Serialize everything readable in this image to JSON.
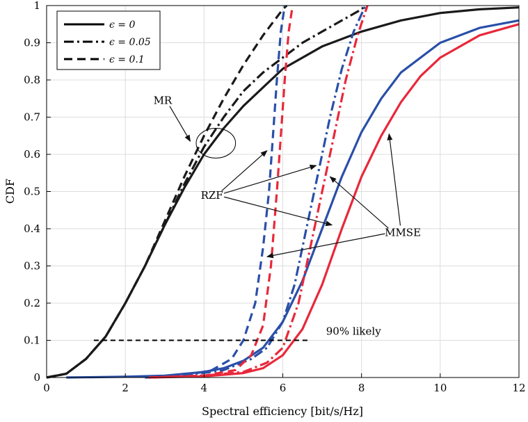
{
  "chart_data": {
    "type": "line",
    "title": "",
    "xlabel": "Spectral efficiency [bit/s/Hz]",
    "ylabel": "CDF",
    "xlim": [
      0,
      12
    ],
    "ylim": [
      0,
      1
    ],
    "xticks": [
      0,
      2,
      4,
      6,
      8,
      10,
      12
    ],
    "yticks": [
      0,
      0.1,
      0.2,
      0.3,
      0.4,
      0.5,
      0.6,
      0.7,
      0.8,
      0.9,
      1
    ],
    "grid": true,
    "legend_position": "top-left",
    "legend": [
      {
        "label": "ϵ = 0",
        "style": "solid"
      },
      {
        "label": "ϵ = 0.05",
        "style": "dashdot"
      },
      {
        "label": "ϵ = 0.1",
        "style": "dashed"
      }
    ],
    "colors": {
      "MR": "#1a1a1a",
      "RZF": "#2a4fa8",
      "MMSE": "#e8283a",
      "grid": "#dcdcdc"
    },
    "series": [
      {
        "name": "MR ϵ=0",
        "scheme": "MR",
        "eps": "0",
        "style": "solid",
        "points": [
          [
            0,
            0
          ],
          [
            0.5,
            0.01
          ],
          [
            1,
            0.05
          ],
          [
            1.5,
            0.11
          ],
          [
            2,
            0.2
          ],
          [
            2.5,
            0.3
          ],
          [
            3,
            0.41
          ],
          [
            3.5,
            0.51
          ],
          [
            4,
            0.6
          ],
          [
            4.5,
            0.67
          ],
          [
            5,
            0.73
          ],
          [
            5.5,
            0.78
          ],
          [
            6,
            0.83
          ],
          [
            7,
            0.89
          ],
          [
            8,
            0.93
          ],
          [
            9,
            0.96
          ],
          [
            10,
            0.98
          ],
          [
            11,
            0.99
          ],
          [
            12,
            0.995
          ]
        ]
      },
      {
        "name": "MR ϵ=0.05",
        "scheme": "MR",
        "eps": "0.05",
        "style": "dashdot",
        "points": [
          [
            0,
            0
          ],
          [
            0.5,
            0.01
          ],
          [
            1,
            0.05
          ],
          [
            1.5,
            0.11
          ],
          [
            2,
            0.2
          ],
          [
            2.5,
            0.3
          ],
          [
            3,
            0.41
          ],
          [
            3.5,
            0.52
          ],
          [
            4,
            0.62
          ],
          [
            4.5,
            0.7
          ],
          [
            5,
            0.77
          ],
          [
            5.5,
            0.82
          ],
          [
            6,
            0.86
          ],
          [
            6.5,
            0.9
          ],
          [
            7,
            0.93
          ],
          [
            7.5,
            0.96
          ],
          [
            8,
            0.99
          ],
          [
            8.1,
            1
          ]
        ]
      },
      {
        "name": "MR ϵ=0.1",
        "scheme": "MR",
        "eps": "0.1",
        "style": "dashed",
        "points": [
          [
            0,
            0
          ],
          [
            0.5,
            0.01
          ],
          [
            1,
            0.05
          ],
          [
            1.5,
            0.11
          ],
          [
            2,
            0.2
          ],
          [
            2.5,
            0.3
          ],
          [
            3,
            0.42
          ],
          [
            3.5,
            0.54
          ],
          [
            4,
            0.65
          ],
          [
            4.5,
            0.75
          ],
          [
            5,
            0.84
          ],
          [
            5.5,
            0.92
          ],
          [
            6,
            0.99
          ],
          [
            6.1,
            1
          ]
        ]
      },
      {
        "name": "RZF ϵ=0",
        "scheme": "RZF",
        "eps": "0",
        "style": "solid",
        "points": [
          [
            0.5,
            0
          ],
          [
            2,
            0.002
          ],
          [
            3,
            0.005
          ],
          [
            4,
            0.015
          ],
          [
            4.5,
            0.025
          ],
          [
            5,
            0.045
          ],
          [
            5.5,
            0.08
          ],
          [
            6,
            0.15
          ],
          [
            6.5,
            0.26
          ],
          [
            7,
            0.4
          ],
          [
            7.5,
            0.54
          ],
          [
            8,
            0.66
          ],
          [
            8.5,
            0.75
          ],
          [
            9,
            0.82
          ],
          [
            10,
            0.9
          ],
          [
            11,
            0.94
          ],
          [
            12,
            0.96
          ]
        ]
      },
      {
        "name": "RZF ϵ=0.05",
        "scheme": "RZF",
        "eps": "0.05",
        "style": "dashdot",
        "points": [
          [
            2.5,
            0
          ],
          [
            3.5,
            0.005
          ],
          [
            4.5,
            0.02
          ],
          [
            5.2,
            0.05
          ],
          [
            5.6,
            0.08
          ],
          [
            6,
            0.15
          ],
          [
            6.3,
            0.25
          ],
          [
            6.6,
            0.4
          ],
          [
            6.9,
            0.55
          ],
          [
            7.2,
            0.7
          ],
          [
            7.5,
            0.83
          ],
          [
            7.8,
            0.93
          ],
          [
            8.1,
            1
          ]
        ]
      },
      {
        "name": "RZF ϵ=0.1",
        "scheme": "RZF",
        "eps": "0.1",
        "style": "dashed",
        "points": [
          [
            2.5,
            0
          ],
          [
            3.5,
            0.005
          ],
          [
            4.2,
            0.02
          ],
          [
            4.7,
            0.05
          ],
          [
            5,
            0.1
          ],
          [
            5.3,
            0.2
          ],
          [
            5.5,
            0.35
          ],
          [
            5.65,
            0.5
          ],
          [
            5.75,
            0.65
          ],
          [
            5.85,
            0.8
          ],
          [
            5.95,
            0.93
          ],
          [
            6.05,
            1
          ]
        ]
      },
      {
        "name": "MMSE ϵ=0",
        "scheme": "MMSE",
        "eps": "0",
        "style": "solid",
        "points": [
          [
            2.6,
            0
          ],
          [
            4,
            0.003
          ],
          [
            5,
            0.012
          ],
          [
            5.5,
            0.025
          ],
          [
            6,
            0.06
          ],
          [
            6.5,
            0.13
          ],
          [
            7,
            0.25
          ],
          [
            7.5,
            0.4
          ],
          [
            8,
            0.54
          ],
          [
            8.5,
            0.65
          ],
          [
            9,
            0.74
          ],
          [
            9.5,
            0.81
          ],
          [
            10,
            0.86
          ],
          [
            11,
            0.92
          ],
          [
            12,
            0.95
          ]
        ]
      },
      {
        "name": "MMSE ϵ=0.05",
        "scheme": "MMSE",
        "eps": "0.05",
        "style": "dashdot",
        "points": [
          [
            2.6,
            0
          ],
          [
            4,
            0.005
          ],
          [
            5,
            0.015
          ],
          [
            5.6,
            0.04
          ],
          [
            6,
            0.08
          ],
          [
            6.4,
            0.2
          ],
          [
            6.7,
            0.35
          ],
          [
            7,
            0.5
          ],
          [
            7.3,
            0.65
          ],
          [
            7.6,
            0.8
          ],
          [
            7.9,
            0.92
          ],
          [
            8.15,
            1
          ]
        ]
      },
      {
        "name": "MMSE ϵ=0.1",
        "scheme": "MMSE",
        "eps": "0.1",
        "style": "dashed",
        "points": [
          [
            2.6,
            0
          ],
          [
            4,
            0.005
          ],
          [
            4.8,
            0.02
          ],
          [
            5.2,
            0.06
          ],
          [
            5.5,
            0.14
          ],
          [
            5.7,
            0.3
          ],
          [
            5.85,
            0.5
          ],
          [
            5.95,
            0.65
          ],
          [
            6.05,
            0.8
          ],
          [
            6.15,
            0.93
          ],
          [
            6.25,
            1
          ]
        ]
      }
    ],
    "threshold_line": {
      "y": 0.1,
      "x": [
        1.2,
        6.7
      ],
      "label": "90% likely",
      "label_x": 7.1,
      "label_y": 0.115
    },
    "annotations": [
      {
        "text": "MR",
        "x": 2.95,
        "y": 0.745,
        "arrows": [
          [
            3.65,
            0.635
          ]
        ]
      },
      {
        "text": "RZF",
        "x": 4.2,
        "y": 0.49,
        "arrows": [
          [
            5.6,
            0.61
          ],
          [
            6.85,
            0.57
          ],
          [
            7.25,
            0.41
          ]
        ]
      },
      {
        "text": "MMSE",
        "x": 9.05,
        "y": 0.39,
        "arrows": [
          [
            8.7,
            0.655
          ],
          [
            7.2,
            0.54
          ],
          [
            5.6,
            0.325
          ]
        ]
      }
    ],
    "ellipse": {
      "cx": 4.3,
      "cy": 0.63,
      "rx": 0.5,
      "ry": 0.04
    }
  }
}
